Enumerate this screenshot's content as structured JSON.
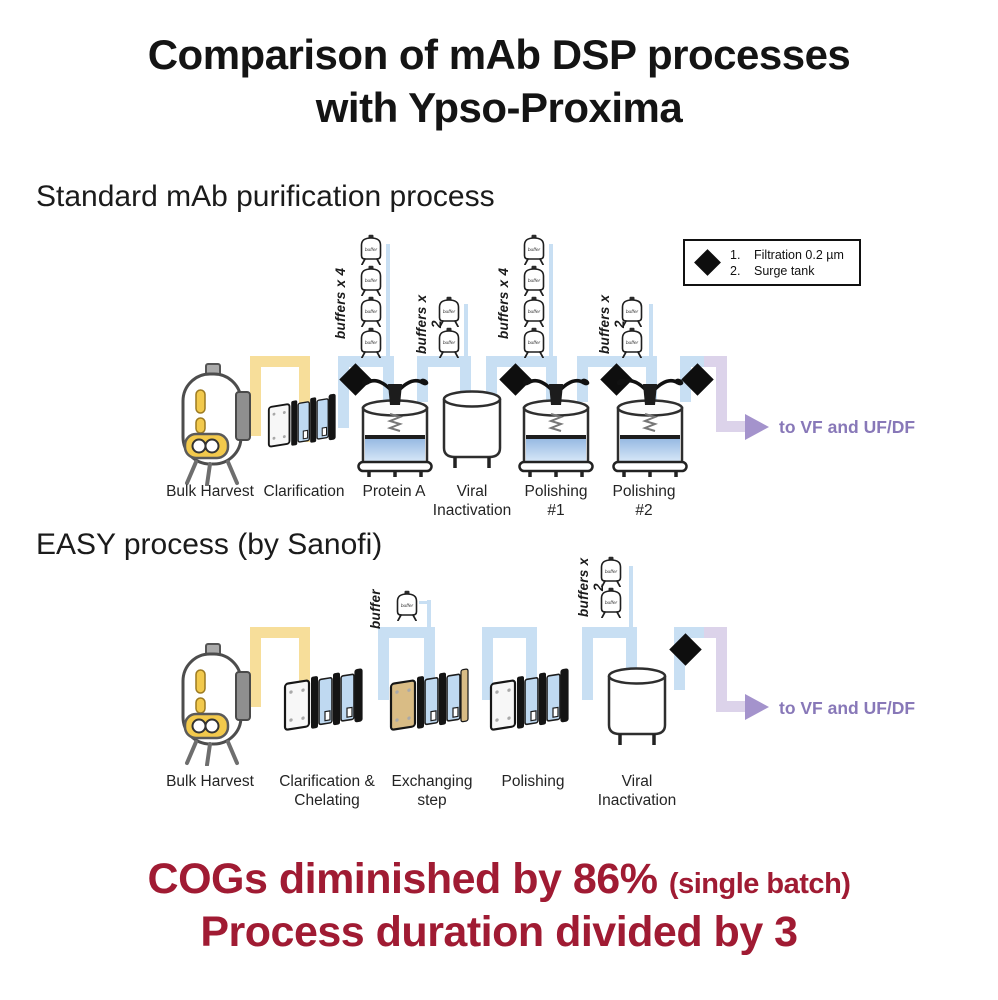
{
  "title": {
    "line1": "Comparison of mAb DSP processes",
    "line2": "with Ypso-Proxima"
  },
  "legend": {
    "items": [
      {
        "num": "1.",
        "label": "Filtration 0.2 µm"
      },
      {
        "num": "2.",
        "label": "Surge tank"
      }
    ]
  },
  "buffer_tank_label": "buffer",
  "standard": {
    "heading": "Standard mAb purification process",
    "steps": [
      {
        "label": "Bulk Harvest"
      },
      {
        "label": "Clarification"
      },
      {
        "label": "Protein A"
      },
      {
        "label": "Viral Inactivation"
      },
      {
        "label": "Polishing #1"
      },
      {
        "label": "Polishing #2"
      }
    ],
    "buffer_groups": [
      {
        "label": "buffers x 4",
        "count": 4
      },
      {
        "label": "buffers x 2",
        "count": 2
      },
      {
        "label": "buffers x 4",
        "count": 4
      },
      {
        "label": "buffers x 2",
        "count": 2
      }
    ],
    "output_label": "to VF and UF/DF"
  },
  "easy": {
    "heading": "EASY process (by Sanofi)",
    "steps": [
      {
        "label": "Bulk Harvest"
      },
      {
        "label": "Clarification & Chelating"
      },
      {
        "label": "Exchanging step"
      },
      {
        "label": "Polishing"
      },
      {
        "label": "Viral Inactivation"
      }
    ],
    "buffer_groups": [
      {
        "label": "buffer",
        "count": 1
      },
      {
        "label": "buffers x 2",
        "count": 2
      }
    ],
    "output_label": "to VF and UF/DF"
  },
  "footer": {
    "line1_main": "COGs diminished by 86%",
    "line1_note": "(single batch)",
    "line2": "Process duration divided by 3"
  },
  "colors": {
    "accent_maroon": "#A01B33",
    "pipe_yellow": "#F7DE9A",
    "pipe_blue": "#C8DFF3",
    "pipe_purple": "#DCD3EA",
    "output_text_purple": "#8878B8",
    "arrow_purple": "#A493CC"
  }
}
